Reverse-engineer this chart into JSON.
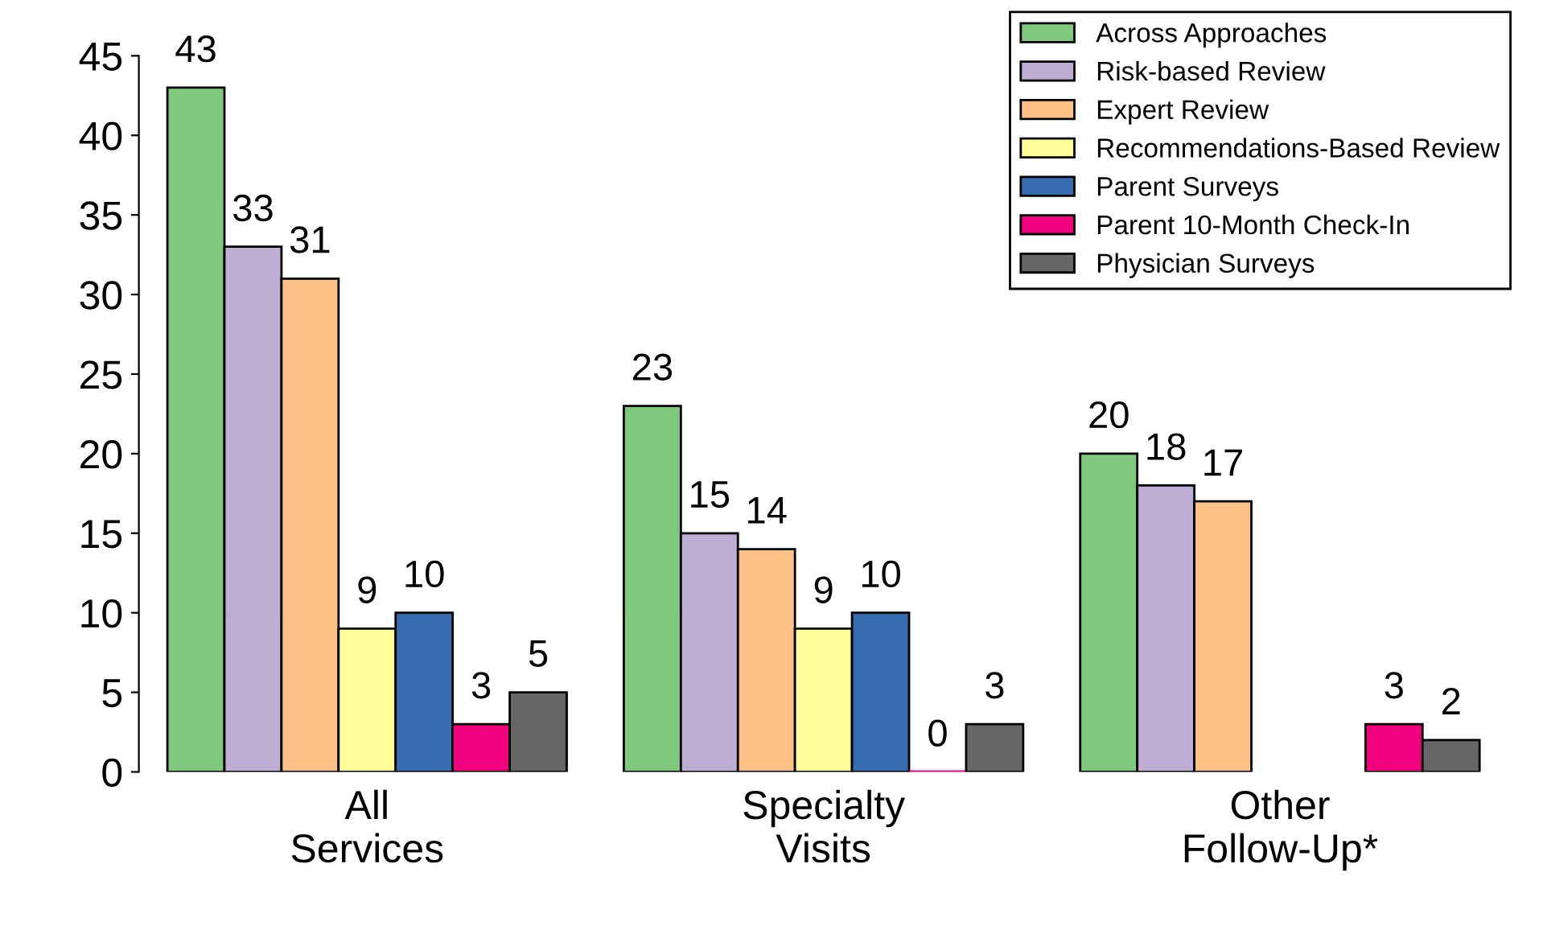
{
  "chart_data": {
    "type": "bar",
    "categories": [
      "All\nServices",
      "Specialty\nVisits",
      "Other\nFollow-Up*"
    ],
    "series": [
      {
        "name": "Across Approaches",
        "color": "#7fc97f",
        "values": [
          43,
          23,
          20
        ]
      },
      {
        "name": "Risk-based Review",
        "color": "#beaed4",
        "values": [
          33,
          15,
          18
        ]
      },
      {
        "name": "Expert Review",
        "color": "#fdc086",
        "values": [
          31,
          14,
          17
        ]
      },
      {
        "name": "Recommendations-Based Review",
        "color": "#ffff99",
        "values": [
          9,
          9,
          null
        ]
      },
      {
        "name": "Parent Surveys",
        "color": "#386cb0",
        "values": [
          10,
          10,
          null
        ]
      },
      {
        "name": "Parent 10-Month Check-In",
        "color": "#f0027f",
        "values": [
          3,
          0,
          3
        ]
      },
      {
        "name": "Physician Surveys",
        "color": "#666666",
        "values": [
          5,
          3,
          2
        ]
      }
    ],
    "ylim": [
      0,
      45
    ],
    "yticks": [
      0,
      5,
      10,
      15,
      20,
      25,
      30,
      35,
      40,
      45
    ],
    "data_labels": true,
    "legend": "top right"
  }
}
